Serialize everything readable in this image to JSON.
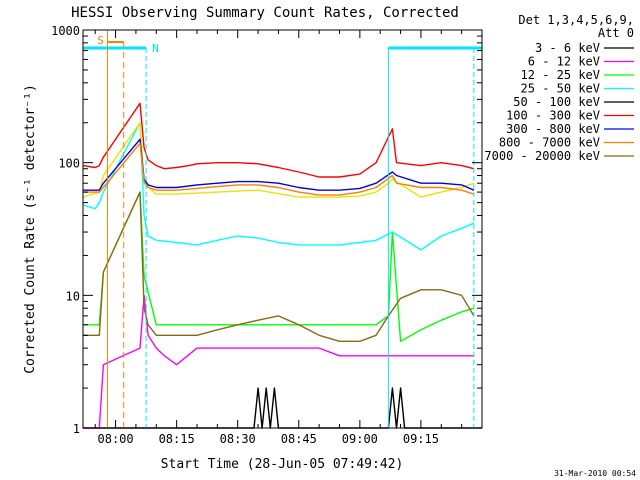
{
  "chart_data": {
    "type": "line",
    "title": "HESSI Observing Summary Count Rates, Corrected",
    "xlabel": "Start Time (28-Jun-05 07:49:42)",
    "ylabel": "Corrected Count Rate (s⁻¹ detector⁻¹)",
    "y_scale": "log",
    "ylim": [
      1,
      1000
    ],
    "xlim_minutes": [
      -8,
      90
    ],
    "x_tick_labels": [
      "08:00",
      "08:15",
      "08:30",
      "08:45",
      "09:00",
      "09:15"
    ],
    "y_tick_labels": [
      "1",
      "10",
      "100",
      "1000"
    ],
    "timestamp": "31-Mar-2010 00:54",
    "legend": {
      "header": [
        "Det 1,3,4,5,6,9,",
        "Att 0"
      ],
      "placement": "right"
    },
    "flags": {
      "s_label": "S",
      "n_label": "N",
      "s_color": "#ff7f00",
      "n_color": "#00e5ff"
    },
    "series": [
      {
        "name": "3 - 6 keV",
        "color": "#000000",
        "x": [
          -8,
          6,
          7,
          34,
          35,
          36,
          37,
          38,
          39,
          40,
          67,
          68,
          69,
          70,
          71,
          90
        ],
        "y": [
          1,
          1,
          1,
          1,
          2,
          1,
          2,
          1,
          2,
          1,
          1,
          2,
          1,
          2,
          1,
          1
        ]
      },
      {
        "name": "6 - 12 keV",
        "color": "#ff00ff",
        "x": [
          -8,
          -4,
          -3,
          6,
          7,
          8,
          10,
          12,
          15,
          20,
          25,
          30,
          35,
          40,
          45,
          50,
          55,
          60,
          64,
          68,
          75,
          82,
          88
        ],
        "y": [
          1,
          1,
          3,
          4,
          10,
          5,
          4,
          3.5,
          3,
          4,
          4,
          4,
          4,
          4,
          4,
          4,
          3.5,
          3.5,
          3.5,
          3.5,
          3.5,
          3.5,
          3.5
        ]
      },
      {
        "name": "12 - 25 keV",
        "color": "#00ff00",
        "x": [
          -8,
          -4,
          -3,
          6,
          7,
          10,
          15,
          25,
          35,
          45,
          55,
          60,
          64,
          67,
          68,
          70,
          75,
          80,
          85,
          88
        ],
        "y": [
          6,
          6,
          15,
          60,
          14,
          6,
          6,
          6,
          6,
          6,
          6,
          6,
          6,
          7,
          30,
          4.5,
          5.5,
          6.5,
          7.5,
          8
        ]
      },
      {
        "name": "25 - 50 keV",
        "color": "#00ffff",
        "x": [
          -8,
          -5,
          -4,
          -3,
          6,
          7,
          8,
          10,
          15,
          20,
          25,
          30,
          35,
          40,
          45,
          50,
          55,
          60,
          64,
          68,
          75,
          80,
          85,
          88
        ],
        "y": [
          48,
          45,
          50,
          60,
          200,
          40,
          28,
          26,
          25,
          24,
          26,
          28,
          27,
          25,
          24,
          24,
          24,
          25,
          26,
          30,
          22,
          28,
          32,
          35
        ]
      },
      {
        "name": "50 - 100 keV",
        "color": "#000000",
        "draw_color": "#e6e600",
        "x": [
          -8,
          -4,
          -3,
          6,
          7,
          10,
          15,
          25,
          35,
          45,
          55,
          60,
          64,
          67,
          68,
          75,
          80,
          85,
          88
        ],
        "y": [
          55,
          60,
          80,
          200,
          70,
          58,
          58,
          60,
          62,
          55,
          55,
          56,
          60,
          70,
          75,
          55,
          60,
          65,
          70
        ]
      },
      {
        "name": "100 - 300 keV",
        "color": "#ff0000",
        "x": [
          -8,
          -5,
          -4,
          -3,
          6,
          7,
          8,
          10,
          12,
          15,
          18,
          20,
          25,
          30,
          35,
          40,
          45,
          50,
          55,
          60,
          64,
          68,
          69,
          75,
          80,
          85,
          88
        ],
        "y": [
          95,
          92,
          95,
          110,
          280,
          130,
          105,
          95,
          90,
          92,
          95,
          98,
          100,
          100,
          98,
          92,
          85,
          78,
          78,
          82,
          100,
          180,
          100,
          95,
          100,
          95,
          90
        ]
      },
      {
        "name": "300 - 800 keV",
        "color": "#0000ff",
        "draw_color": "#0000e6",
        "x": [
          -8,
          -4,
          -3,
          6,
          7,
          8,
          10,
          15,
          20,
          25,
          30,
          35,
          40,
          45,
          50,
          55,
          60,
          64,
          68,
          69,
          75,
          80,
          85,
          88
        ],
        "y": [
          62,
          62,
          70,
          150,
          75,
          68,
          65,
          65,
          68,
          70,
          72,
          72,
          70,
          65,
          62,
          62,
          64,
          70,
          85,
          80,
          70,
          70,
          68,
          62
        ]
      },
      {
        "name": "800 - 7000 keV",
        "color": "#ff7f00",
        "x": [
          -8,
          -4,
          -3,
          6,
          7,
          8,
          10,
          15,
          20,
          25,
          30,
          35,
          40,
          45,
          50,
          55,
          60,
          64,
          68,
          69,
          75,
          80,
          85,
          88
        ],
        "y": [
          60,
          60,
          65,
          140,
          72,
          65,
          62,
          62,
          64,
          66,
          68,
          68,
          65,
          60,
          57,
          57,
          60,
          65,
          80,
          70,
          65,
          65,
          62,
          58
        ]
      },
      {
        "name": "7000 - 20000 keV",
        "color": "#8b6914",
        "x": [
          -8,
          -4,
          -3,
          6,
          7,
          8,
          10,
          15,
          20,
          25,
          30,
          35,
          40,
          45,
          50,
          55,
          60,
          64,
          67,
          70,
          75,
          80,
          85,
          88
        ],
        "y": [
          5,
          5,
          15,
          60,
          8,
          6,
          5,
          5,
          5,
          5.5,
          6,
          6.5,
          7,
          6,
          5,
          4.5,
          4.5,
          5,
          7,
          9.5,
          11,
          11,
          10,
          7
        ]
      }
    ]
  }
}
